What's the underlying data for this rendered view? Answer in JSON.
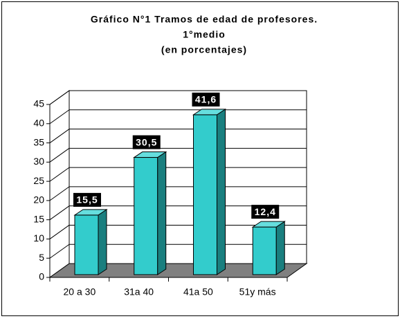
{
  "chart_data": {
    "type": "bar3d",
    "title": [
      "Gráfico N°1  Tramos de edad de profesores.",
      "1°medio",
      "(en porcentajes)"
    ],
    "categories": [
      "20 a 30",
      "31a 40",
      "41a 50",
      "51y más"
    ],
    "values": [
      15.5,
      30.5,
      41.6,
      12.4
    ],
    "value_labels": [
      "15,5",
      "30,5",
      "41,6",
      "12,4"
    ],
    "color": "#33cccc",
    "ylim": [
      0,
      45
    ],
    "yticks": [
      0,
      5,
      10,
      15,
      20,
      25,
      30,
      35,
      40,
      45
    ],
    "grid": true
  }
}
